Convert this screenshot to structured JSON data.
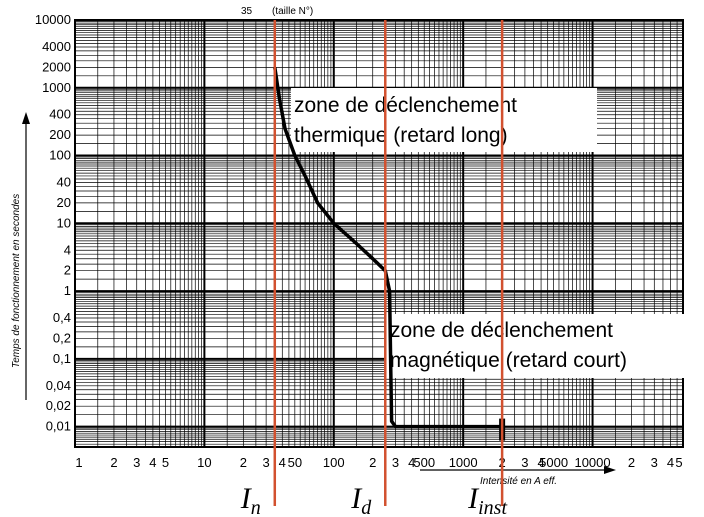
{
  "chart_data": {
    "type": "line",
    "top_labels": {
      "size_number": "35",
      "size_caption": "(taille N°)"
    },
    "ylabel": "Temps de fonctionnement en secondes",
    "xlabel": "Intensité en A eff.",
    "y_scale": "log",
    "ylim": [
      0.005,
      10000
    ],
    "y_ticks": [
      "10000",
      "4000",
      "2000",
      "1000",
      "400",
      "200",
      "100",
      "40",
      "20",
      "10",
      "4",
      "2",
      "1",
      "0,4",
      "0,2",
      "0,1",
      "0,04",
      "0,02",
      "0,01"
    ],
    "x_scale": "log",
    "x_ticks": [
      "1",
      "2",
      "3",
      "4",
      "5",
      "10",
      "2",
      "3",
      "4",
      "50",
      "100",
      "2",
      "3",
      "4",
      "500",
      "1000",
      "2",
      "3",
      "4",
      "5000",
      "10000",
      "2",
      "3",
      "4",
      "5"
    ],
    "grid": true,
    "markers": [
      {
        "symbol": "I",
        "sub": "n",
        "value": 35,
        "color": "#d2512f"
      },
      {
        "symbol": "I",
        "sub": "d",
        "value": 250,
        "color": "#d2512f"
      },
      {
        "symbol": "I",
        "sub": "inst",
        "value": 2000,
        "color": "#d2512f"
      }
    ],
    "annotations": [
      {
        "lines": [
          "zone de déclenchement",
          "thermique (retard long)"
        ]
      },
      {
        "lines": [
          "zone de déclenchement",
          "magnétique (retard court)"
        ]
      }
    ],
    "series": [
      {
        "points": [
          [
            35,
            2000
          ],
          [
            38,
            700
          ],
          [
            42,
            250
          ],
          [
            50,
            100
          ],
          [
            60,
            50
          ],
          [
            75,
            20
          ],
          [
            100,
            10
          ],
          [
            150,
            5
          ],
          [
            200,
            3
          ],
          [
            250,
            2
          ],
          [
            270,
            1
          ],
          [
            275,
            0.1
          ],
          [
            280,
            0.012
          ],
          [
            300,
            0.01
          ],
          [
            1000,
            0.01
          ],
          [
            2000,
            0.01
          ]
        ]
      }
    ]
  }
}
